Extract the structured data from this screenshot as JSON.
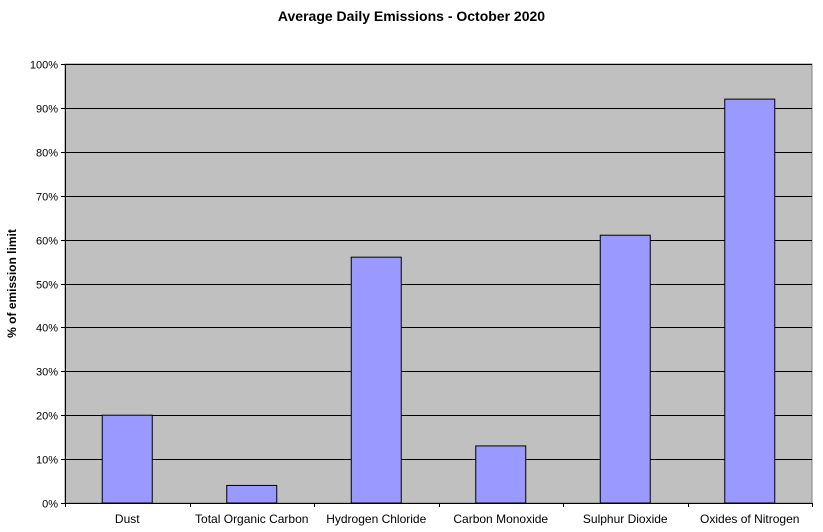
{
  "chart_data": {
    "type": "bar",
    "title": "Average Daily Emissions - October 2020",
    "ylabel": "% of emission limit",
    "xlabel": "",
    "categories": [
      "Dust",
      "Total Organic Carbon",
      "Hydrogen Chloride",
      "Carbon Monoxide",
      "Sulphur Dioxide",
      "Oxides of Nitrogen"
    ],
    "values": [
      20,
      4,
      56,
      13,
      61,
      92
    ],
    "ylim": [
      0,
      100
    ],
    "yticks": [
      0,
      10,
      20,
      30,
      40,
      50,
      60,
      70,
      80,
      90,
      100
    ],
    "ytick_labels": [
      "0%",
      "10%",
      "20%",
      "30%",
      "40%",
      "50%",
      "60%",
      "70%",
      "80%",
      "90%",
      "100%"
    ],
    "grid": true,
    "legend": "none",
    "colors": {
      "bar": "#9999ff",
      "bar_edge": "#000000",
      "plot_background": "#c0c0c0",
      "gridline": "#000000"
    }
  }
}
